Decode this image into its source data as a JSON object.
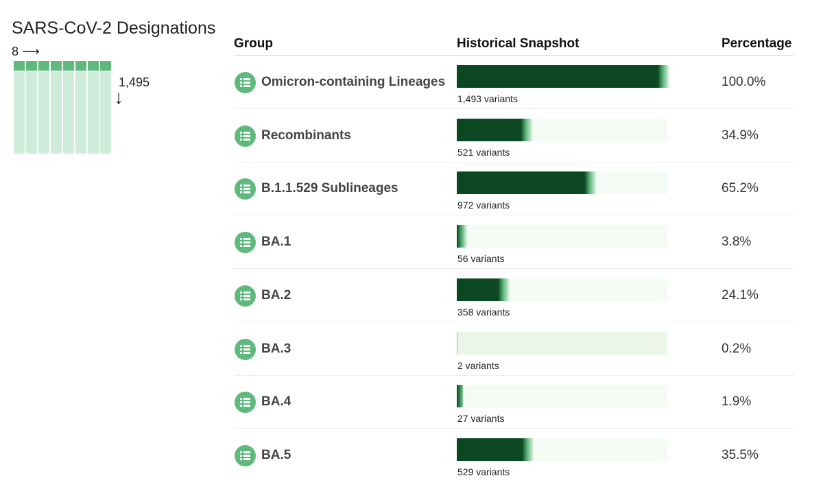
{
  "title": "SARS-CoV-2 Designations",
  "summary": {
    "columns": "8",
    "col_arrow": "⟶",
    "rows": "1,495",
    "row_arrow": "↓"
  },
  "colors": {
    "accent": "#5fb97d",
    "bar_dark": "#0b4720",
    "track_light": "#f4fbf4"
  },
  "icon": "list-icon",
  "table": {
    "headers": {
      "group": "Group",
      "snapshot": "Historical Snapshot",
      "percentage": "Percentage"
    }
  },
  "chart_data": {
    "type": "bar",
    "categories": [
      "Omicron-containing Lineages",
      "Recombinants",
      "B.1.1.529 Sublineages",
      "BA.1",
      "BA.2",
      "BA.3",
      "BA.4",
      "BA.5"
    ],
    "values": [
      100.0,
      34.9,
      65.2,
      3.8,
      24.1,
      0.2,
      1.9,
      35.5
    ],
    "xlim": [
      0,
      100
    ],
    "rows": [
      {
        "group": "Omicron-containing Lineages",
        "variants_label": "1,493 variants",
        "variants": 1493,
        "pct": 100.0,
        "pct_label": "100.0%"
      },
      {
        "group": "Recombinants",
        "variants_label": "521 variants",
        "variants": 521,
        "pct": 34.9,
        "pct_label": "34.9%"
      },
      {
        "group": "B.1.1.529 Sublineages",
        "variants_label": "972 variants",
        "variants": 972,
        "pct": 65.2,
        "pct_label": "65.2%"
      },
      {
        "group": "BA.1",
        "variants_label": "56 variants",
        "variants": 56,
        "pct": 3.8,
        "pct_label": "3.8%"
      },
      {
        "group": "BA.2",
        "variants_label": "358 variants",
        "variants": 358,
        "pct": 24.1,
        "pct_label": "24.1%"
      },
      {
        "group": "BA.3",
        "variants_label": "2 variants",
        "variants": 2,
        "pct": 0.2,
        "pct_label": "0.2%"
      },
      {
        "group": "BA.4",
        "variants_label": "27 variants",
        "variants": 27,
        "pct": 1.9,
        "pct_label": "1.9%"
      },
      {
        "group": "BA.5",
        "variants_label": "529 variants",
        "variants": 529,
        "pct": 35.5,
        "pct_label": "35.5%"
      }
    ]
  }
}
